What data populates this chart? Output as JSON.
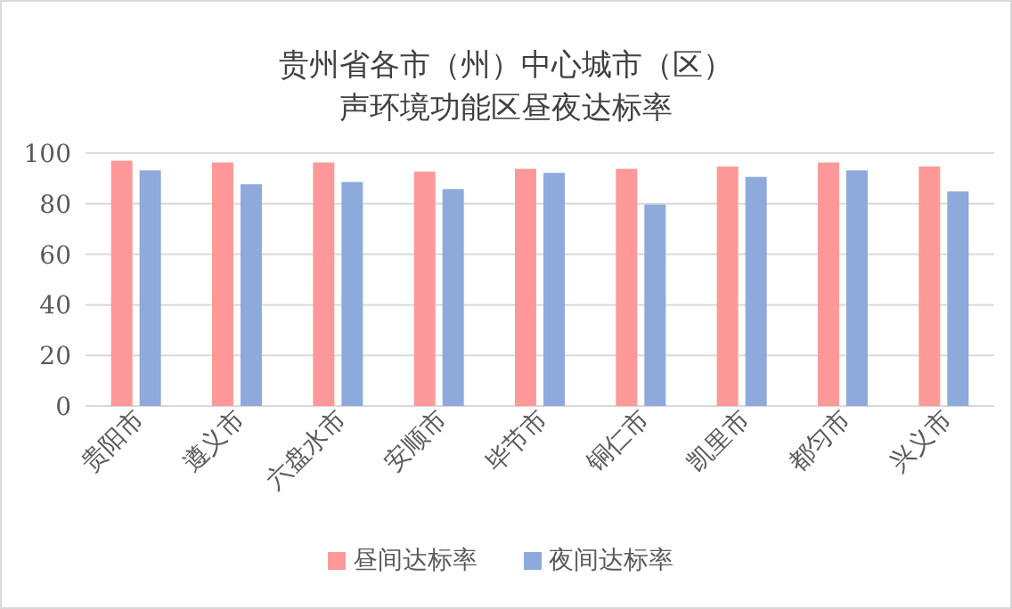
{
  "chart_data": {
    "type": "bar",
    "title": "贵州省各市（州）中心城市（区）",
    "subtitle": "声环境功能区昼夜达标率",
    "categories": [
      "贵阳市",
      "遵义市",
      "六盘水市",
      "安顺市",
      "毕节市",
      "铜仁市",
      "凯里市",
      "都匀市",
      "兴义市"
    ],
    "series": [
      {
        "name": "昼间达标率",
        "color": "#ff9999",
        "values": [
          97,
          96.3,
          96.3,
          92.7,
          93.8,
          93.8,
          94.7,
          96.3,
          94.7
        ]
      },
      {
        "name": "夜间达标率",
        "color": "#8eaadc",
        "values": [
          93.2,
          87.7,
          88.6,
          85.8,
          92.2,
          79.7,
          90.6,
          93.2,
          84.9
        ]
      }
    ],
    "ylim": [
      0,
      100
    ],
    "yticks": [
      0,
      20,
      40,
      60,
      80,
      100
    ],
    "grid": "y",
    "legend": "bottom"
  }
}
